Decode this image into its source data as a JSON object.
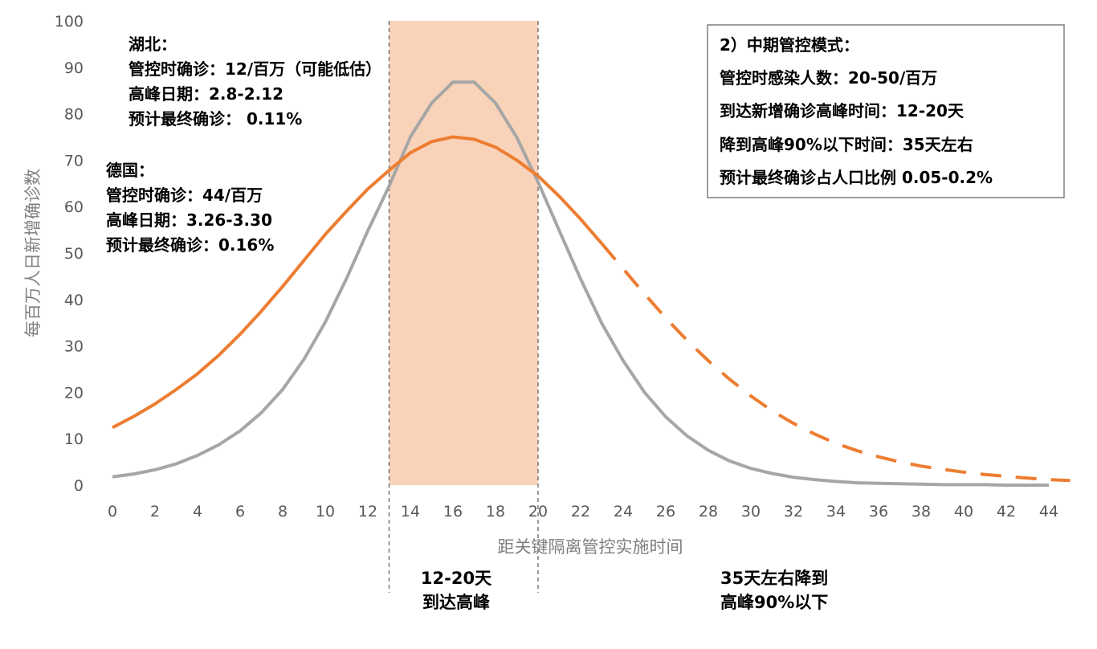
{
  "chart_data": {
    "type": "line",
    "xlabel": "距关键隔离管控实施时间",
    "ylabel": "每百万人日新增确诊数",
    "xlim": [
      0,
      45
    ],
    "ylim": [
      0,
      100
    ],
    "x_ticks": [
      "0",
      "2",
      "4",
      "6",
      "8",
      "10",
      "12",
      "14",
      "16",
      "18",
      "20",
      "22",
      "24",
      "26",
      "28",
      "30",
      "32",
      "34",
      "36",
      "38",
      "40",
      "42",
      "44"
    ],
    "y_ticks": [
      "0",
      "10",
      "20",
      "30",
      "40",
      "50",
      "60",
      "70",
      "80",
      "90",
      "100"
    ],
    "legend": "none",
    "grid": false,
    "highlight_band": {
      "x_start": 13,
      "x_end": 20,
      "color": "#f8cbad"
    },
    "series": [
      {
        "color": "#a6a6a6",
        "style": "solid",
        "x": [
          0,
          1,
          2,
          3,
          4,
          5,
          6,
          7,
          8,
          9,
          10,
          11,
          12,
          13,
          14,
          15,
          16,
          17,
          18,
          19,
          20,
          21,
          22,
          23,
          24,
          25,
          26,
          27,
          28,
          29,
          30,
          31,
          32,
          33,
          34,
          35,
          36,
          37,
          38,
          39,
          40,
          41,
          42,
          43,
          44
        ],
        "values": [
          1.8,
          2.4,
          3.3,
          4.6,
          6.4,
          8.7,
          11.7,
          15.6,
          20.6,
          27.1,
          35.1,
          44.5,
          54.8,
          64.4,
          75.0,
          82.3,
          86.8,
          86.8,
          82.3,
          74.9,
          65.3,
          54.8,
          44.4,
          34.8,
          26.8,
          20.0,
          14.7,
          10.6,
          7.5,
          5.2,
          3.6,
          2.5,
          1.7,
          1.2,
          0.8,
          0.5,
          0.4,
          0.3,
          0.2,
          0.1,
          0.1,
          0.1,
          0.0,
          0.0,
          0.0
        ]
      },
      {
        "color": "#ed7d31",
        "style": "solid",
        "x": [
          0,
          1,
          2,
          3,
          4,
          5,
          6,
          7,
          8,
          9,
          10,
          11,
          12,
          13,
          14,
          15,
          16,
          17,
          18,
          19,
          20,
          21,
          22,
          23
        ],
        "values": [
          12.4,
          14.8,
          17.5,
          20.6,
          24.0,
          28.0,
          32.5,
          37.5,
          42.8,
          48.4,
          54.0,
          59.0,
          63.8,
          67.8,
          71.6,
          74.0,
          75.0,
          74.5,
          72.8,
          70.0,
          66.6,
          62.2,
          57.3,
          52.0
        ]
      },
      {
        "color": "#ed7d31",
        "style": "dashed",
        "x": [
          23,
          24,
          25,
          26,
          27,
          28,
          29,
          30,
          31,
          32,
          33,
          34,
          35,
          36,
          37,
          38,
          39,
          40,
          41,
          42,
          43,
          44,
          45
        ],
        "values": [
          52.0,
          46.6,
          41.2,
          36.0,
          31.2,
          26.8,
          22.8,
          19.2,
          16.0,
          13.3,
          11.0,
          9.0,
          7.4,
          6.1,
          5.0,
          4.1,
          3.4,
          2.8,
          2.3,
          1.9,
          1.5,
          1.2,
          1.0
        ]
      }
    ]
  },
  "annotations": {
    "hubei": [
      "湖北：",
      "管控时确诊：12/百万（可能低估）",
      "高峰日期：2.8-2.12",
      "预计最终确诊： 0.11%"
    ],
    "germany": [
      "德国：",
      "管控时确诊：44/百万",
      "高峰日期：3.26-3.30",
      "预计最终确诊：0.16%"
    ],
    "info_box": [
      "2）中期管控模式：",
      "管控时感染人数：20-50/百万",
      "到达新增确诊高峰时间：12-20天",
      "降到高峰90%以下时间：35天左右",
      "预计最终确诊占人口比例 0.05-0.2%"
    ],
    "band_note": [
      "12-20天",
      "到达高峰"
    ],
    "decline_note": [
      "35天左右降到",
      "高峰90%以下"
    ]
  }
}
